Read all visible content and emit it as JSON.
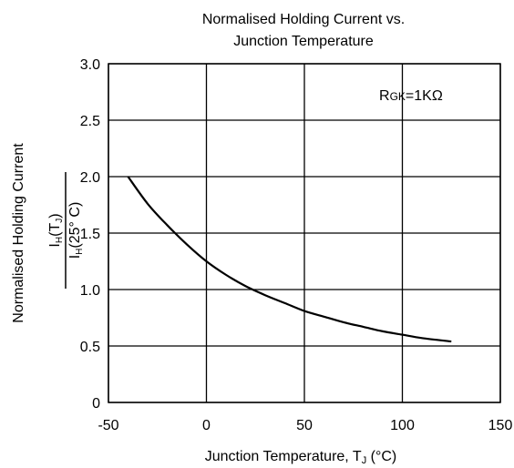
{
  "chart_data": {
    "type": "line",
    "title_line1": "Normalised Holding Current vs.",
    "title_line2": "Junction Temperature",
    "xlabel": "Junction Temperature, T",
    "xlabel_sub": "J",
    "xlabel_unit": " (°C)",
    "ylabel": "Normalised Holding Current",
    "y_fraction": {
      "num_main": "I",
      "num_sub": "H",
      "num_tail": "(T",
      "num_tail_sub": "J",
      "num_close": ")",
      "den_main": "I",
      "den_sub": "H",
      "den_tail": "(25° C)"
    },
    "annotation": {
      "main": "R",
      "sub": "GK",
      "tail": "=1KΩ"
    },
    "xlim": [
      -50,
      150
    ],
    "ylim": [
      0,
      3.0
    ],
    "x_ticks": [
      -50,
      0,
      50,
      100,
      150
    ],
    "x_tick_labels": [
      "-50",
      "0",
      "50",
      "100",
      "150"
    ],
    "y_ticks": [
      0,
      0.5,
      1.0,
      1.5,
      2.0,
      2.5,
      3.0
    ],
    "y_tick_labels": [
      "0",
      "0.5",
      "1.0",
      "1.5",
      "2.0",
      "2.5",
      "3.0"
    ],
    "grid": true,
    "series": [
      {
        "color": "#000000",
        "x": [
          -40,
          -30,
          -20,
          -10,
          0,
          10,
          20,
          30,
          40,
          50,
          60,
          70,
          80,
          90,
          100,
          110,
          125
        ],
        "y": [
          2.0,
          1.76,
          1.57,
          1.4,
          1.25,
          1.13,
          1.03,
          0.95,
          0.88,
          0.81,
          0.76,
          0.71,
          0.67,
          0.63,
          0.6,
          0.57,
          0.54
        ]
      }
    ]
  }
}
